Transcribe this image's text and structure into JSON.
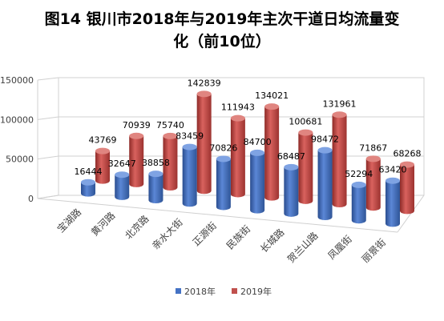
{
  "chart_data": {
    "type": "bar",
    "title_line1": "图14 银川市2018年与2019年主次干道日均流量变",
    "title_line2": "化（前10位）",
    "categories": [
      "宝湖路",
      "黄河路",
      "北京路",
      "亲水大街",
      "正源街",
      "民族街",
      "长城路",
      "贺兰山路",
      "凤凰街",
      "丽景街"
    ],
    "series": [
      {
        "name": "2018年",
        "values": [
          16444,
          32647,
          38858,
          83459,
          70826,
          84700,
          68487,
          98472,
          52294,
          63420
        ],
        "color": "#4472C4"
      },
      {
        "name": "2019年",
        "values": [
          43769,
          70939,
          75740,
          142839,
          111943,
          134021,
          100681,
          131961,
          71867,
          68268
        ],
        "color": "#C0504D"
      }
    ],
    "y_ticks": [
      "0",
      "50000",
      "100000",
      "150000"
    ],
    "ylim": [
      0,
      150000
    ],
    "legend_position": "bottom",
    "grid": true
  }
}
